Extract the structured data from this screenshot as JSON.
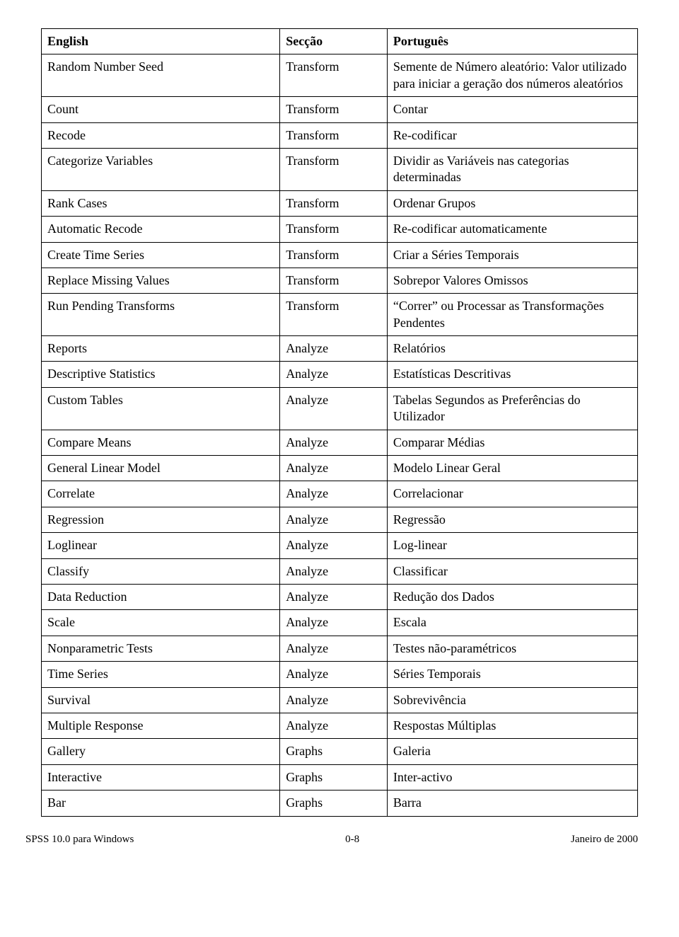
{
  "table": {
    "columns": [
      "English",
      "Secção",
      "Português"
    ],
    "rows": [
      [
        "Random Number Seed",
        "Transform",
        "Semente de Número aleatório: Valor utilizado para iniciar a geração dos números aleatórios"
      ],
      [
        "Count",
        "Transform",
        "Contar"
      ],
      [
        "Recode",
        "Transform",
        "Re-codificar"
      ],
      [
        "Categorize Variables",
        "Transform",
        "Dividir as Variáveis nas categorias determinadas"
      ],
      [
        "Rank Cases",
        "Transform",
        "Ordenar Grupos"
      ],
      [
        "Automatic Recode",
        "Transform",
        "Re-codificar automaticamente"
      ],
      [
        "Create Time Series",
        "Transform",
        "Criar a Séries Temporais"
      ],
      [
        "Replace Missing Values",
        "Transform",
        "Sobrepor Valores Omissos"
      ],
      [
        "Run Pending Transforms",
        "Transform",
        "“Correr” ou Processar as Transformações Pendentes"
      ],
      [
        "Reports",
        "Analyze",
        "Relatórios"
      ],
      [
        "Descriptive Statistics",
        "Analyze",
        "Estatísticas Descritivas"
      ],
      [
        "Custom Tables",
        "Analyze",
        "Tabelas Segundos as Preferências do Utilizador"
      ],
      [
        "Compare Means",
        "Analyze",
        "Comparar Médias"
      ],
      [
        "General Linear Model",
        "Analyze",
        "Modelo Linear Geral"
      ],
      [
        "Correlate",
        "Analyze",
        "Correlacionar"
      ],
      [
        "Regression",
        "Analyze",
        "Regressão"
      ],
      [
        "Loglinear",
        "Analyze",
        "Log-linear"
      ],
      [
        "Classify",
        "Analyze",
        "Classificar"
      ],
      [
        "Data Reduction",
        "Analyze",
        "Redução dos Dados"
      ],
      [
        "Scale",
        "Analyze",
        "Escala"
      ],
      [
        "Nonparametric Tests",
        "Analyze",
        "Testes não-paramétricos"
      ],
      [
        "Time Series",
        "Analyze",
        "Séries Temporais"
      ],
      [
        "Survival",
        "Analyze",
        "Sobrevivência"
      ],
      [
        "Multiple Response",
        "Analyze",
        "Respostas Múltiplas"
      ],
      [
        "Gallery",
        "Graphs",
        "Galeria"
      ],
      [
        "Interactive",
        "Graphs",
        "Inter-activo"
      ],
      [
        "Bar",
        "Graphs",
        "Barra"
      ]
    ]
  },
  "footer": {
    "left": "SPSS 10.0 para Windows",
    "center": "0-8",
    "right": "Janeiro de 2000"
  }
}
